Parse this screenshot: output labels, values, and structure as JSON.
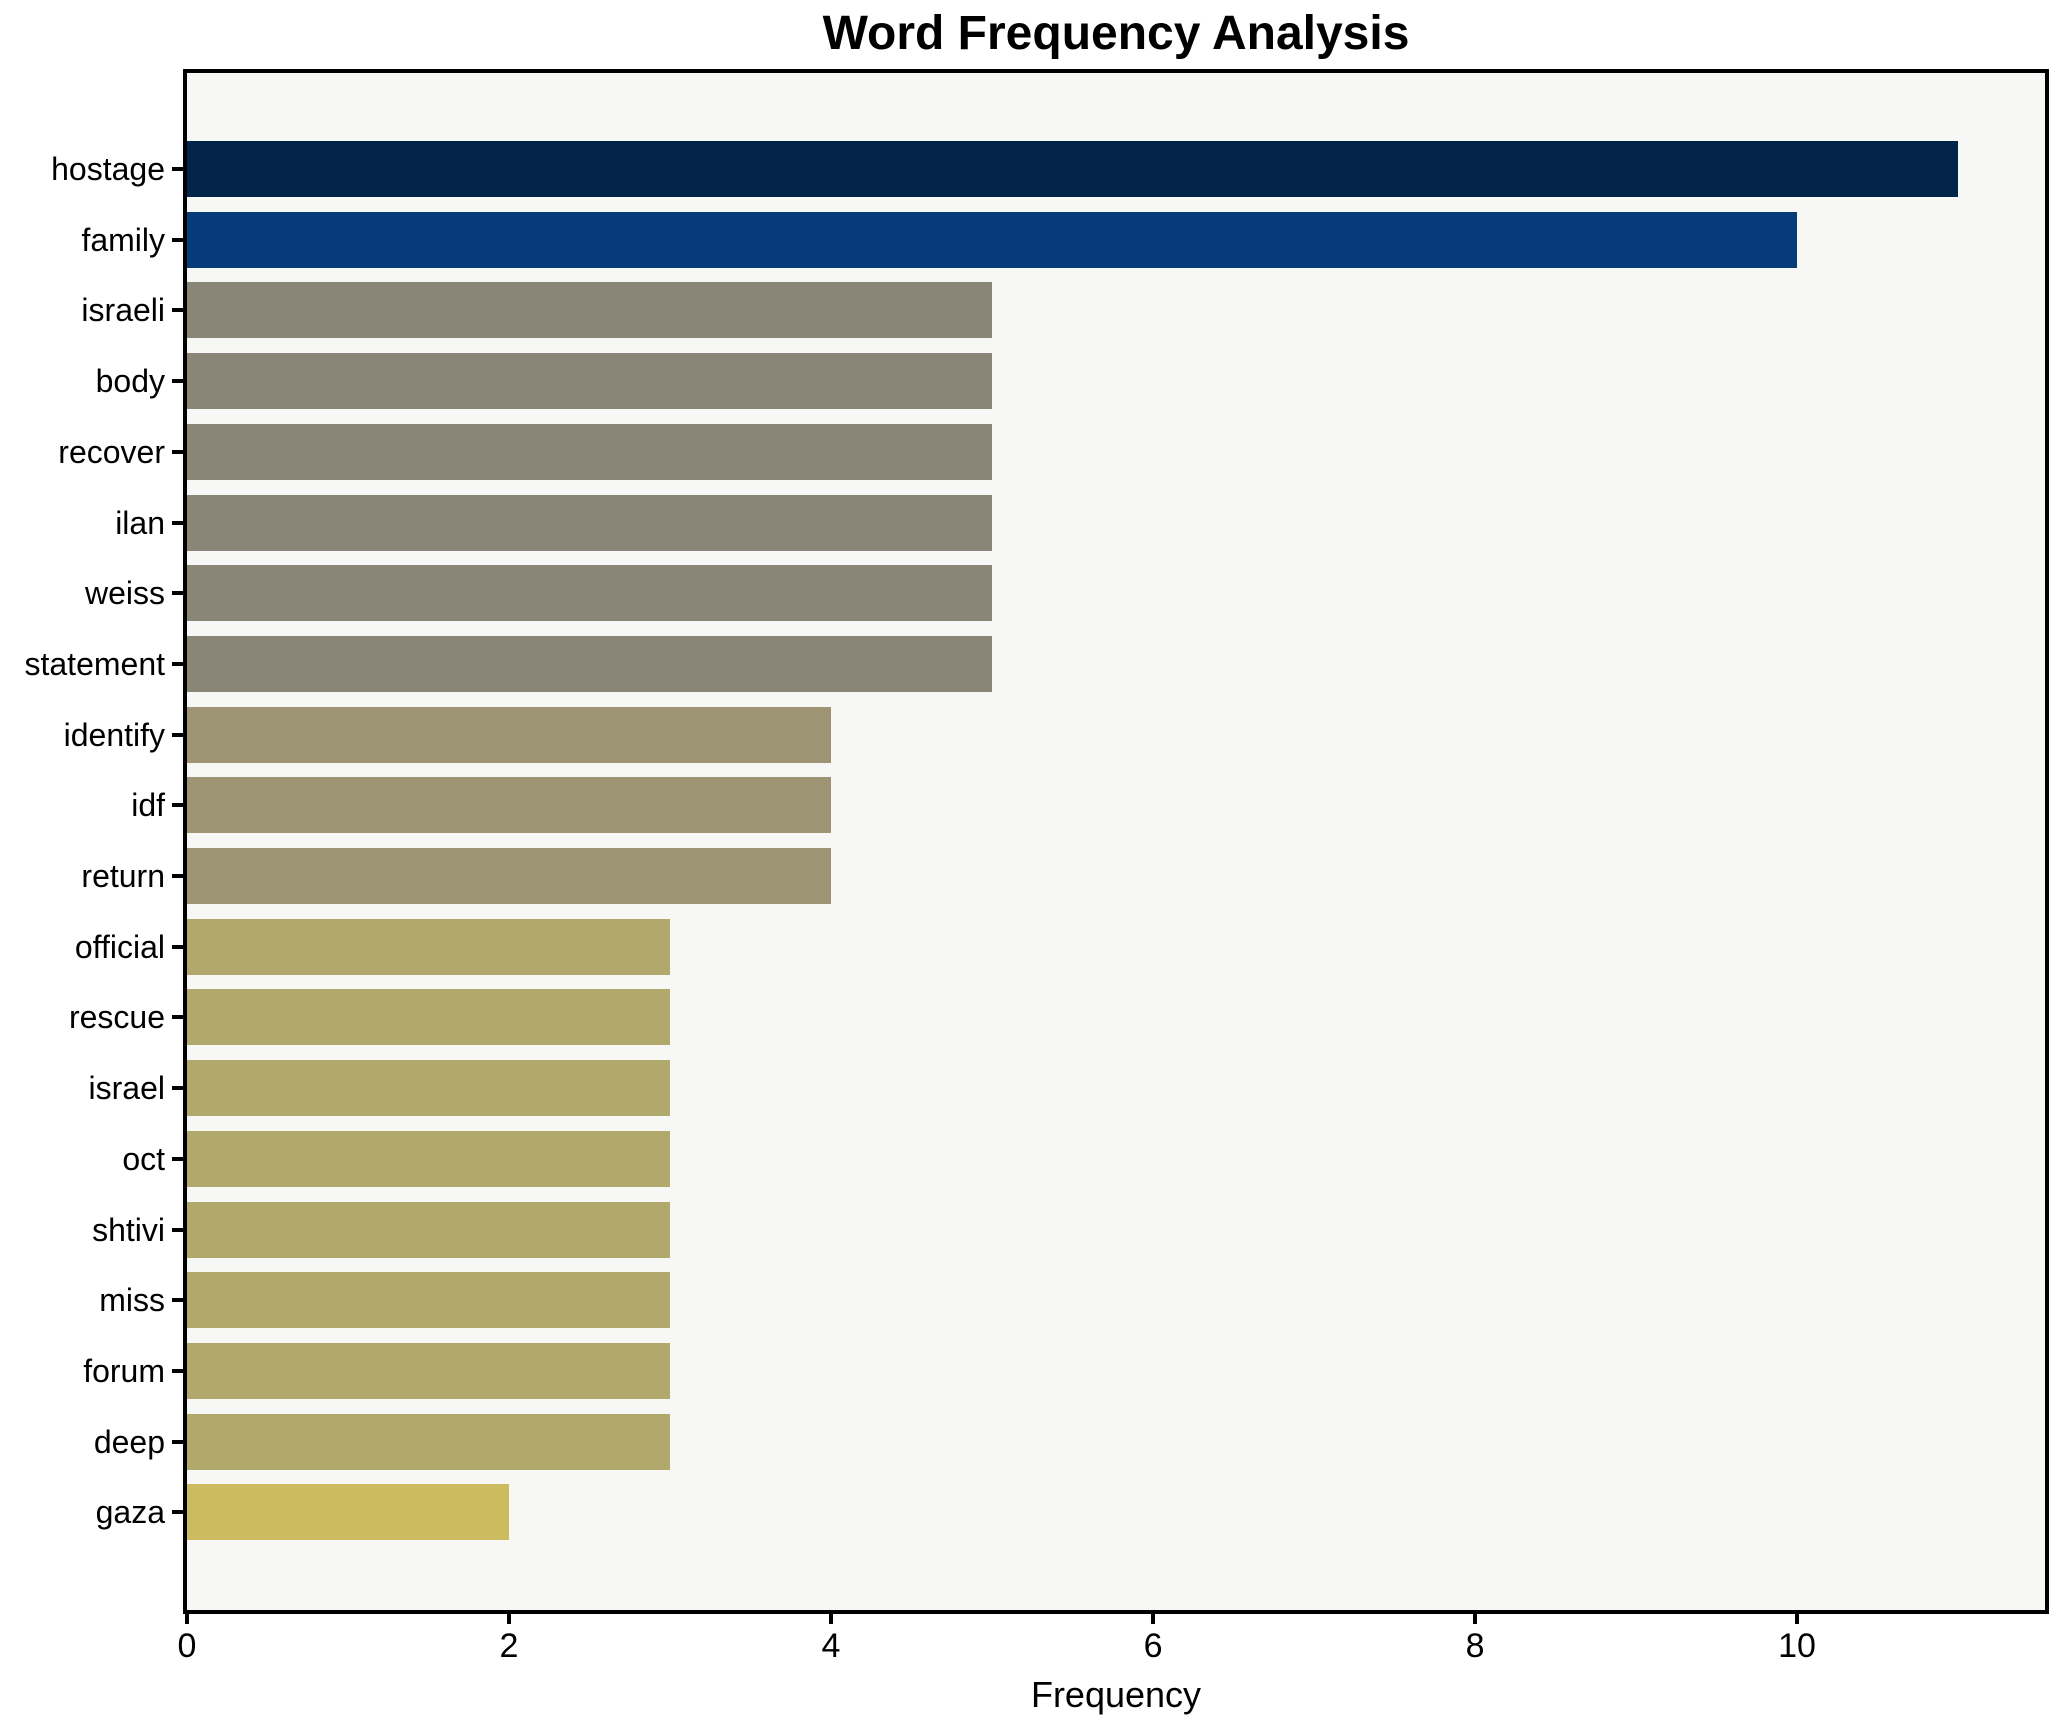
{
  "chart_data": {
    "type": "bar",
    "orientation": "horizontal",
    "title": "Word Frequency Analysis",
    "xlabel": "Frequency",
    "ylabel": "",
    "categories": [
      "hostage",
      "family",
      "israeli",
      "body",
      "recover",
      "ilan",
      "weiss",
      "statement",
      "identify",
      "idf",
      "return",
      "official",
      "rescue",
      "israel",
      "oct",
      "shtivi",
      "miss",
      "forum",
      "deep",
      "gaza"
    ],
    "values": [
      11,
      10,
      5,
      5,
      5,
      5,
      5,
      5,
      4,
      4,
      4,
      3,
      3,
      3,
      3,
      3,
      3,
      3,
      3,
      2
    ],
    "bar_colors": [
      "#032449",
      "#063a78",
      "#898577",
      "#898577",
      "#898577",
      "#898577",
      "#898577",
      "#898577",
      "#9c9472",
      "#9c9472",
      "#9c9472",
      "#b1a86c",
      "#b1a86c",
      "#b1a86c",
      "#b1a86c",
      "#b1a86c",
      "#b1a86c",
      "#b1a86c",
      "#b1a86c",
      "#cdbb5f"
    ],
    "xticks": [
      0,
      2,
      4,
      6,
      8,
      10
    ],
    "xlim": [
      0,
      11.54
    ],
    "grid": false,
    "legend": false,
    "plot_background": "#f7f7f5",
    "figure_background": "#ffffff",
    "spine_color": "#000000"
  }
}
